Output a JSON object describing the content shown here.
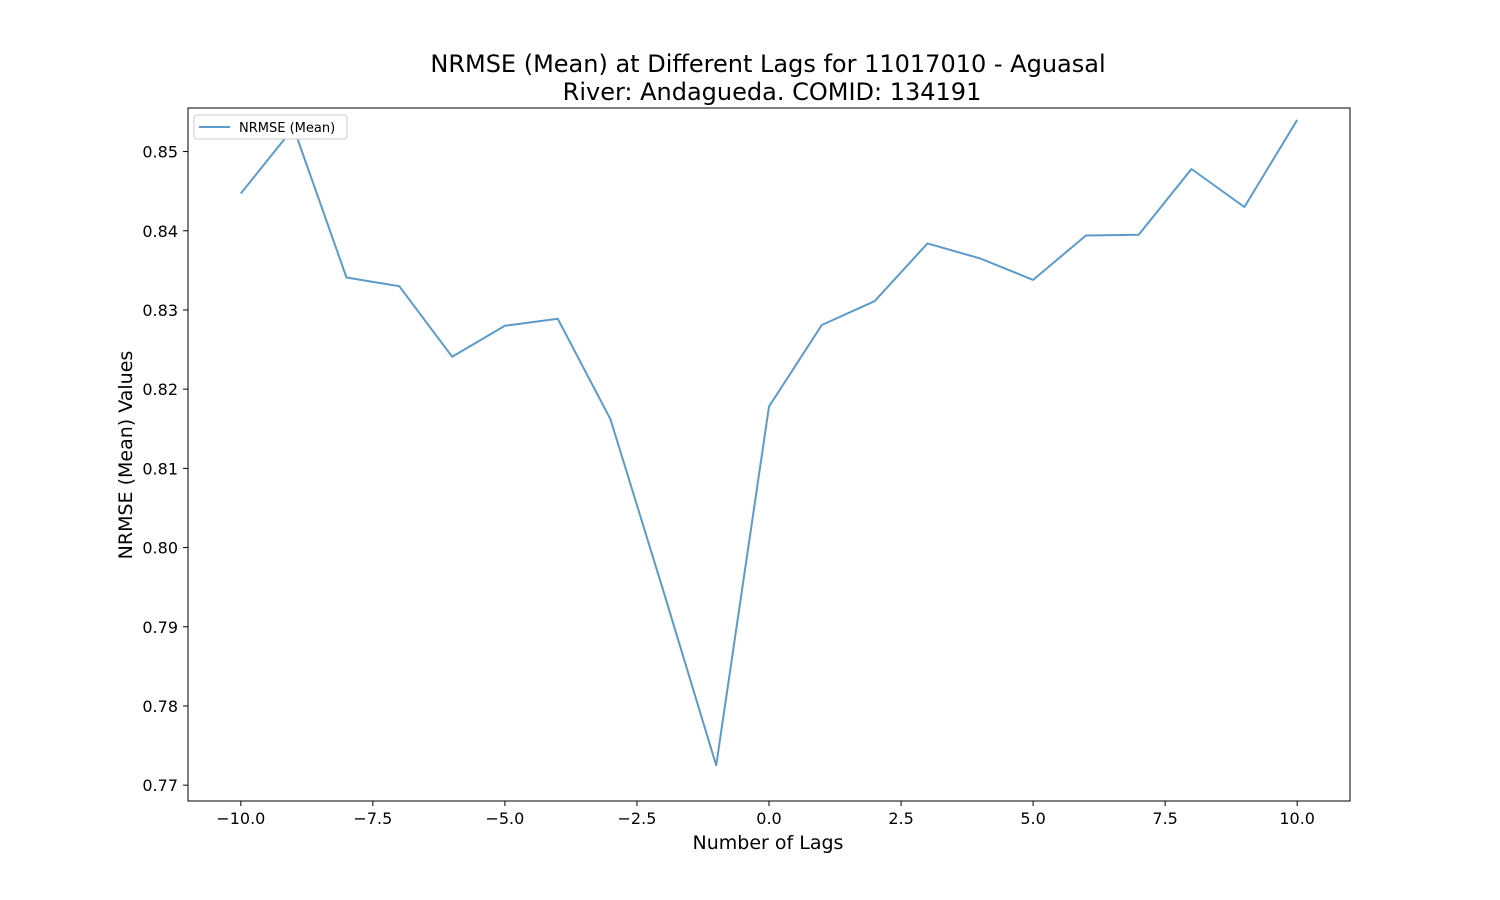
{
  "chart_data": {
    "type": "line",
    "title_line1": "NRMSE (Mean) at Different Lags for 11017010 - Aguasal",
    "title_line2": "River: Andagueda. COMID: 134191",
    "xlabel": "Number of Lags",
    "ylabel": "NRMSE (Mean) Values",
    "xlim": [
      -11,
      11
    ],
    "ylim": [
      0.768,
      0.8555
    ],
    "x_ticks": [
      -10.0,
      -7.5,
      -5.0,
      -2.5,
      0.0,
      2.5,
      5.0,
      7.5,
      10.0
    ],
    "x_tick_labels": [
      "−10.0",
      "−7.5",
      "−5.0",
      "−2.5",
      "0.0",
      "2.5",
      "5.0",
      "7.5",
      "10.0"
    ],
    "y_ticks": [
      0.77,
      0.78,
      0.79,
      0.8,
      0.81,
      0.82,
      0.83,
      0.84,
      0.85
    ],
    "y_tick_labels": [
      "0.77",
      "0.78",
      "0.79",
      "0.80",
      "0.81",
      "0.82",
      "0.83",
      "0.84",
      "0.85"
    ],
    "grid": false,
    "legend_position": "top-left",
    "series": [
      {
        "name": "NRMSE (Mean)",
        "color": "#5b9bc9",
        "x": [
          -10,
          -9,
          -8,
          -7,
          -6,
          -5,
          -4,
          -3,
          -2,
          -1,
          0,
          1,
          2,
          3,
          4,
          5,
          6,
          7,
          8,
          9,
          10
        ],
        "y": [
          0.8447,
          0.853,
          0.8341,
          0.833,
          0.8241,
          0.828,
          0.8289,
          0.8162,
          0.7945,
          0.7725,
          0.8178,
          0.8281,
          0.8311,
          0.8384,
          0.8365,
          0.8338,
          0.8394,
          0.8395,
          0.8478,
          0.843,
          0.854
        ]
      }
    ]
  }
}
